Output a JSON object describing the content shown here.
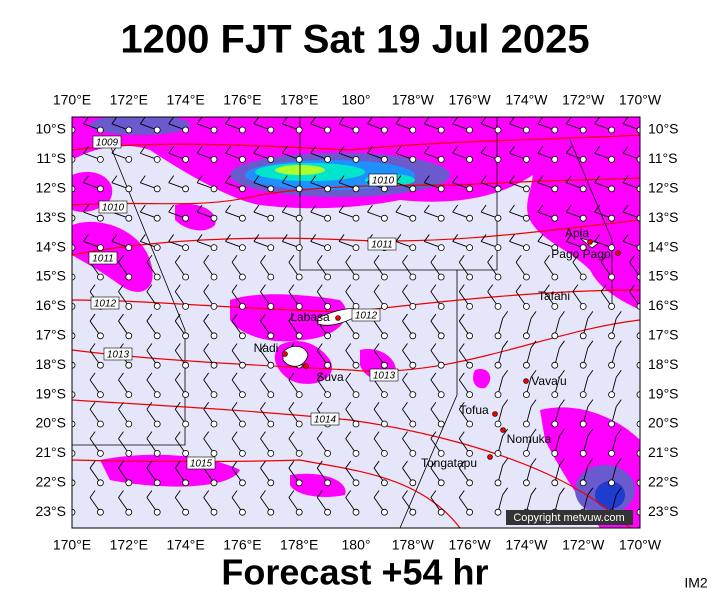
{
  "header": {
    "title": "1200 FJT Sat 19 Jul 2025"
  },
  "map": {
    "lon_labels": [
      "170°E",
      "172°E",
      "174°E",
      "176°E",
      "178°E",
      "180°",
      "178°W",
      "176°W",
      "174°W",
      "172°W",
      "170°W"
    ],
    "lat_labels": [
      "10°S",
      "11°S",
      "12°S",
      "13°S",
      "14°S",
      "15°S",
      "16°S",
      "17°S",
      "18°S",
      "19°S",
      "20°S",
      "21°S",
      "22°S",
      "23°S"
    ],
    "isobar_labels": [
      "1009",
      "1010",
      "1010",
      "1011",
      "1011",
      "1012",
      "1012",
      "1013",
      "1013",
      "1014",
      "1015"
    ],
    "places": [
      "Apia",
      "Pago Pago",
      "Tafahi",
      "Labasa",
      "Nadi",
      "Suva",
      "Vava'u",
      "Tofua",
      "Nomuka",
      "Tongatapu"
    ],
    "copyright": "Copyright metvuw.com"
  },
  "footer": {
    "caption": "Forecast +54 hr",
    "image_id": "IM2"
  }
}
